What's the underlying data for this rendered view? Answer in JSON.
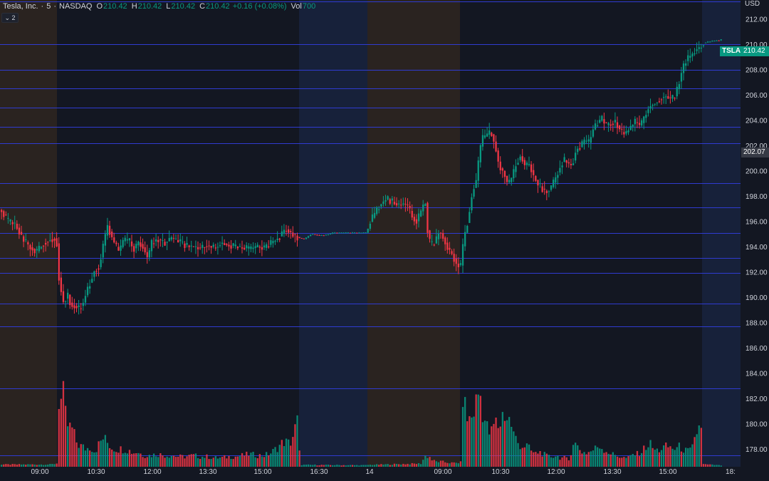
{
  "legend": {
    "symbol": "Tesla, Inc.",
    "interval": "5",
    "exchange": "NASDAQ",
    "o_key": "O",
    "o": "210.42",
    "h_key": "H",
    "h": "210.42",
    "l_key": "L",
    "l": "210.42",
    "c_key": "C",
    "c": "210.42",
    "change": "+0.16 (+0.08%)",
    "vol_key": "Vol",
    "vol": "700"
  },
  "collapse_label": "⌄ 2",
  "price_scale": {
    "currency": "USD"
  },
  "ticker_tag": {
    "symbol": "TSLA",
    "price": "210.42"
  },
  "crosshair_price": "202.07",
  "colors": {
    "background": "#131722",
    "up": "#089981",
    "down": "#f23645",
    "hline": "#2f3bd1",
    "premarket": "#2a2320",
    "postmarket": "#17213a",
    "ticker_bg": "#089981"
  },
  "chart_data": {
    "type": "candlestick",
    "symbol": "TSLA",
    "interval": "5",
    "yticks": [
      "212.00",
      "210.00",
      "208.00",
      "206.00",
      "204.00",
      "202.00",
      "200.00",
      "198.00",
      "196.00",
      "194.00",
      "192.00",
      "190.00",
      "188.00",
      "186.00",
      "184.00",
      "182.00",
      "180.00",
      "178.00"
    ],
    "xticks": [
      "09:00",
      "10:30",
      "12:00",
      "13:30",
      "15:00",
      "16:30",
      "14",
      "09:00",
      "10:30",
      "12:00",
      "13:30",
      "15:00",
      "18:"
    ],
    "ylim": [
      176.6,
      213.5
    ],
    "hlines": [
      213.4,
      210.0,
      208.0,
      206.5,
      205.0,
      203.5,
      202.2,
      199.0,
      197.1,
      195.1,
      193.1,
      191.9,
      189.5,
      187.7,
      182.8,
      177.5
    ],
    "sessions": [
      {
        "type": "pre",
        "start": "09:00",
        "end": "09:30"
      },
      {
        "type": "regular",
        "start": "09:30",
        "end": "16:00"
      },
      {
        "type": "post",
        "start": "16:00",
        "end": "18:00"
      },
      {
        "type": "pre",
        "start": "14 07:30",
        "end": "09:30"
      },
      {
        "type": "regular",
        "start": "09:30",
        "end": "16:00"
      },
      {
        "type": "post",
        "start": "16:00",
        "end": "17:00"
      }
    ],
    "close_path": [
      [
        0,
        196.9
      ],
      [
        10,
        196.0
      ],
      [
        20,
        195.8
      ],
      [
        30,
        194.7
      ],
      [
        40,
        194.0
      ],
      [
        50,
        193.6
      ],
      [
        60,
        194.3
      ],
      [
        70,
        194.6
      ],
      [
        78,
        194.7
      ],
      [
        82,
        191.2
      ],
      [
        88,
        189.6
      ],
      [
        94,
        190.2
      ],
      [
        98,
        189.4
      ],
      [
        104,
        189.3
      ],
      [
        110,
        189.1
      ],
      [
        116,
        189.6
      ],
      [
        120,
        190.4
      ],
      [
        126,
        191.3
      ],
      [
        132,
        192.2
      ],
      [
        138,
        192.4
      ],
      [
        144,
        194.2
      ],
      [
        150,
        195.7
      ],
      [
        154,
        195.0
      ],
      [
        160,
        194.2
      ],
      [
        166,
        193.6
      ],
      [
        172,
        194.5
      ],
      [
        180,
        194.5
      ],
      [
        186,
        193.8
      ],
      [
        194,
        194.4
      ],
      [
        200,
        193.9
      ],
      [
        206,
        193.1
      ],
      [
        212,
        194.3
      ],
      [
        220,
        194.6
      ],
      [
        230,
        194.3
      ],
      [
        240,
        194.7
      ],
      [
        250,
        194.4
      ],
      [
        260,
        194.1
      ],
      [
        270,
        194.0
      ],
      [
        280,
        193.9
      ],
      [
        290,
        194.1
      ],
      [
        300,
        193.9
      ],
      [
        310,
        194.3
      ],
      [
        320,
        194.1
      ],
      [
        330,
        194.0
      ],
      [
        340,
        193.9
      ],
      [
        350,
        193.8
      ],
      [
        360,
        194.0
      ],
      [
        370,
        193.9
      ],
      [
        380,
        194.3
      ],
      [
        390,
        194.7
      ],
      [
        400,
        195.4
      ],
      [
        410,
        195.0
      ],
      [
        418,
        194.7
      ],
      [
        426,
        194.6
      ],
      [
        436,
        195.0
      ],
      [
        446,
        194.9
      ],
      [
        456,
        194.9
      ],
      [
        466,
        195.1
      ],
      [
        476,
        195.1
      ],
      [
        486,
        195.1
      ],
      [
        496,
        195.1
      ],
      [
        506,
        195.1
      ],
      [
        514,
        195.1
      ],
      [
        518,
        195.9
      ],
      [
        524,
        196.5
      ],
      [
        530,
        197.1
      ],
      [
        536,
        197.5
      ],
      [
        542,
        197.8
      ],
      [
        548,
        197.6
      ],
      [
        554,
        197.4
      ],
      [
        560,
        197.3
      ],
      [
        566,
        197.4
      ],
      [
        572,
        197.2
      ],
      [
        578,
        196.3
      ],
      [
        584,
        196.0
      ],
      [
        590,
        196.8
      ],
      [
        596,
        197.6
      ],
      [
        600,
        194.8
      ],
      [
        604,
        194.1
      ],
      [
        610,
        194.3
      ],
      [
        616,
        195.3
      ],
      [
        622,
        194.6
      ],
      [
        628,
        193.8
      ],
      [
        634,
        193.4
      ],
      [
        640,
        192.6
      ],
      [
        646,
        192.5
      ],
      [
        650,
        194.6
      ],
      [
        656,
        196.1
      ],
      [
        662,
        198.2
      ],
      [
        668,
        199.3
      ],
      [
        672,
        201.4
      ],
      [
        676,
        202.6
      ],
      [
        680,
        202.7
      ],
      [
        684,
        202.9
      ],
      [
        688,
        203.1
      ],
      [
        694,
        202.0
      ],
      [
        700,
        200.3
      ],
      [
        706,
        199.9
      ],
      [
        712,
        198.9
      ],
      [
        718,
        199.5
      ],
      [
        724,
        200.6
      ],
      [
        730,
        201.2
      ],
      [
        736,
        200.4
      ],
      [
        742,
        200.5
      ],
      [
        748,
        199.6
      ],
      [
        754,
        199.0
      ],
      [
        760,
        198.6
      ],
      [
        766,
        198.3
      ],
      [
        772,
        198.6
      ],
      [
        778,
        199.3
      ],
      [
        784,
        200.1
      ],
      [
        790,
        200.9
      ],
      [
        796,
        200.6
      ],
      [
        802,
        200.4
      ],
      [
        808,
        201.7
      ],
      [
        814,
        201.9
      ],
      [
        820,
        202.4
      ],
      [
        826,
        202.2
      ],
      [
        832,
        203.3
      ],
      [
        838,
        203.8
      ],
      [
        844,
        204.1
      ],
      [
        850,
        203.6
      ],
      [
        856,
        203.7
      ],
      [
        862,
        203.9
      ],
      [
        868,
        203.4
      ],
      [
        874,
        202.9
      ],
      [
        880,
        203.1
      ],
      [
        886,
        203.6
      ],
      [
        892,
        203.9
      ],
      [
        898,
        203.5
      ],
      [
        904,
        204.3
      ],
      [
        910,
        205.0
      ],
      [
        916,
        205.3
      ],
      [
        922,
        205.5
      ],
      [
        928,
        205.8
      ],
      [
        934,
        205.9
      ],
      [
        940,
        205.7
      ],
      [
        946,
        205.8
      ],
      [
        952,
        206.9
      ],
      [
        958,
        208.2
      ],
      [
        964,
        208.9
      ],
      [
        970,
        209.1
      ],
      [
        976,
        209.6
      ],
      [
        982,
        209.7
      ],
      [
        986,
        210.1
      ],
      [
        994,
        210.2
      ],
      [
        1002,
        210.3
      ],
      [
        1008,
        210.3
      ],
      [
        1014,
        210.42
      ]
    ],
    "volume_path": [
      [
        0,
        0.18
      ],
      [
        70,
        0.18
      ],
      [
        80,
        0.28
      ],
      [
        81,
        5.4
      ],
      [
        86,
        5.1
      ],
      [
        88,
        5.5
      ],
      [
        92,
        3.4
      ],
      [
        96,
        3.1
      ],
      [
        100,
        3.0
      ],
      [
        106,
        2.0
      ],
      [
        110,
        1.7
      ],
      [
        114,
        1.6
      ],
      [
        120,
        1.4
      ],
      [
        126,
        1.6
      ],
      [
        132,
        1.2
      ],
      [
        138,
        1.8
      ],
      [
        144,
        2.3
      ],
      [
        150,
        1.9
      ],
      [
        156,
        1.5
      ],
      [
        162,
        1.4
      ],
      [
        168,
        1.4
      ],
      [
        174,
        1.4
      ],
      [
        180,
        1.3
      ],
      [
        186,
        1.1
      ],
      [
        192,
        1.2
      ],
      [
        200,
        0.9
      ],
      [
        210,
        0.9
      ],
      [
        220,
        1.0
      ],
      [
        230,
        0.9
      ],
      [
        240,
        0.9
      ],
      [
        250,
        0.8
      ],
      [
        260,
        0.8
      ],
      [
        270,
        0.9
      ],
      [
        280,
        0.8
      ],
      [
        290,
        0.8
      ],
      [
        300,
        0.7
      ],
      [
        310,
        0.7
      ],
      [
        320,
        0.8
      ],
      [
        330,
        0.8
      ],
      [
        340,
        0.9
      ],
      [
        350,
        1.0
      ],
      [
        360,
        0.9
      ],
      [
        370,
        0.9
      ],
      [
        380,
        1.1
      ],
      [
        390,
        1.6
      ],
      [
        398,
        2.0
      ],
      [
        406,
        1.8
      ],
      [
        412,
        2.7
      ],
      [
        418,
        3.9
      ],
      [
        420,
        0.15
      ],
      [
        514,
        0.12
      ],
      [
        516,
        0.15
      ],
      [
        590,
        0.25
      ],
      [
        596,
        0.85
      ],
      [
        602,
        0.8
      ],
      [
        606,
        0.5
      ],
      [
        612,
        0.4
      ],
      [
        620,
        0.4
      ],
      [
        632,
        0.3
      ],
      [
        640,
        0.3
      ],
      [
        646,
        0.35
      ],
      [
        648,
        6.2
      ],
      [
        654,
        3.9
      ],
      [
        660,
        3.7
      ],
      [
        666,
        4.7
      ],
      [
        670,
        5.8
      ],
      [
        674,
        5.6
      ],
      [
        678,
        4.0
      ],
      [
        684,
        2.9
      ],
      [
        688,
        2.5
      ],
      [
        694,
        3.6
      ],
      [
        700,
        3.1
      ],
      [
        706,
        4.4
      ],
      [
        710,
        3.9
      ],
      [
        716,
        3.6
      ],
      [
        720,
        2.6
      ],
      [
        726,
        1.9
      ],
      [
        732,
        1.6
      ],
      [
        738,
        1.7
      ],
      [
        744,
        1.3
      ],
      [
        750,
        1.0
      ],
      [
        756,
        1.2
      ],
      [
        762,
        1.0
      ],
      [
        768,
        0.8
      ],
      [
        774,
        0.8
      ],
      [
        780,
        0.9
      ],
      [
        786,
        0.7
      ],
      [
        792,
        0.7
      ],
      [
        798,
        0.5
      ],
      [
        804,
        2.0
      ],
      [
        810,
        1.6
      ],
      [
        816,
        1.2
      ],
      [
        822,
        1.1
      ],
      [
        828,
        1.2
      ],
      [
        834,
        1.4
      ],
      [
        840,
        1.7
      ],
      [
        846,
        1.4
      ],
      [
        852,
        1.2
      ],
      [
        858,
        1.0
      ],
      [
        864,
        0.9
      ],
      [
        870,
        0.8
      ],
      [
        876,
        0.7
      ],
      [
        882,
        0.7
      ],
      [
        888,
        1.0
      ],
      [
        894,
        1.0
      ],
      [
        900,
        1.2
      ],
      [
        906,
        1.6
      ],
      [
        912,
        1.8
      ],
      [
        918,
        1.3
      ],
      [
        924,
        1.3
      ],
      [
        930,
        1.5
      ],
      [
        936,
        1.6
      ],
      [
        942,
        1.5
      ],
      [
        948,
        1.4
      ],
      [
        954,
        1.6
      ],
      [
        960,
        1.3
      ],
      [
        966,
        1.2
      ],
      [
        972,
        1.5
      ],
      [
        978,
        2.9
      ],
      [
        984,
        3.4
      ],
      [
        986,
        0.2
      ],
      [
        1014,
        0.1
      ]
    ]
  }
}
